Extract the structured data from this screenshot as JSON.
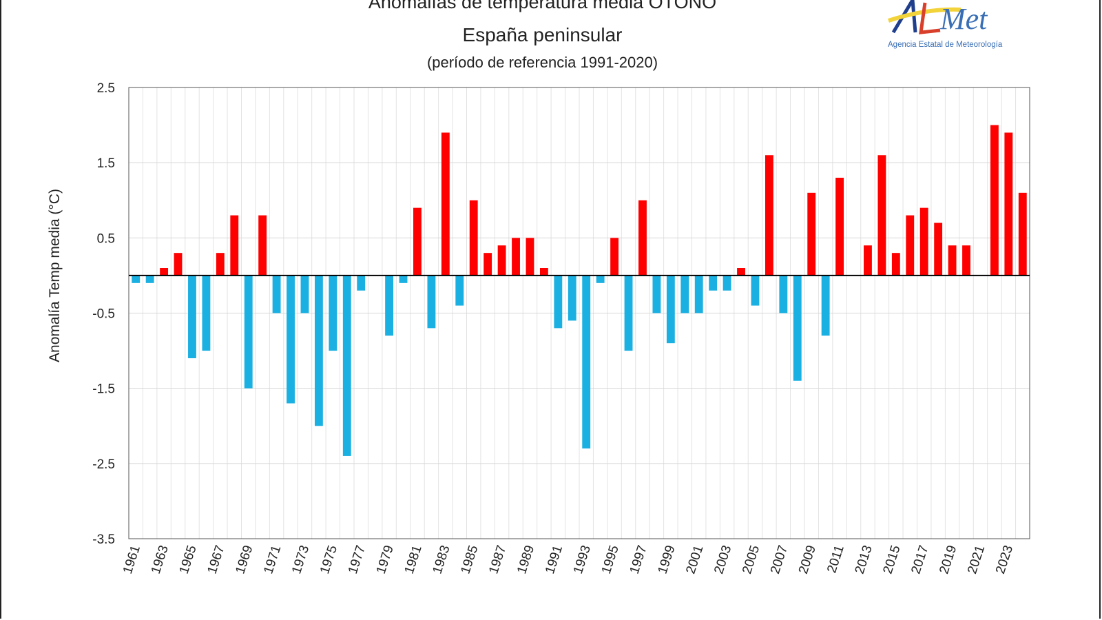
{
  "chart_data": {
    "type": "bar",
    "title": "Anomalías de temperatura media OTOÑO",
    "subtitle": "España peninsular",
    "note": "(período de referencia 1991-2020)",
    "xlabel": "",
    "ylabel": "Anomalía Temp media (°C)",
    "ylim": [
      -3.5,
      2.5
    ],
    "yticks": [
      "2.5",
      "1.5",
      "0.5",
      "-0.5",
      "-1.5",
      "-2.5",
      "-3.5"
    ],
    "grid": true,
    "colors": {
      "positive": "#ff0000",
      "negative": "#1ab0e2"
    },
    "categories": [
      "1961",
      "1962",
      "1963",
      "1964",
      "1965",
      "1966",
      "1967",
      "1968",
      "1969",
      "1970",
      "1971",
      "1972",
      "1973",
      "1974",
      "1975",
      "1976",
      "1977",
      "1978",
      "1979",
      "1980",
      "1981",
      "1982",
      "1983",
      "1984",
      "1985",
      "1986",
      "1987",
      "1988",
      "1989",
      "1990",
      "1991",
      "1992",
      "1993",
      "1994",
      "1995",
      "1996",
      "1997",
      "1998",
      "1999",
      "2000",
      "2001",
      "2002",
      "2003",
      "2004",
      "2005",
      "2006",
      "2007",
      "2008",
      "2009",
      "2010",
      "2011",
      "2012",
      "2013",
      "2014",
      "2015",
      "2016",
      "2017",
      "2018",
      "2019",
      "2020",
      "2021",
      "2022",
      "2023",
      "2024"
    ],
    "values": [
      -0.1,
      -0.1,
      0.1,
      0.3,
      -1.1,
      -1.0,
      0.3,
      0.8,
      -1.5,
      0.8,
      -0.5,
      -1.7,
      -0.5,
      -2.0,
      -1.0,
      -2.4,
      -0.2,
      0.0,
      -0.8,
      -0.1,
      0.9,
      -0.7,
      1.9,
      -0.4,
      1.0,
      0.3,
      0.4,
      0.5,
      0.5,
      0.1,
      -0.7,
      -0.6,
      -2.3,
      -0.1,
      0.5,
      -1.0,
      1.0,
      -0.5,
      -0.9,
      -0.5,
      -0.5,
      -0.2,
      -0.2,
      0.1,
      -0.4,
      1.6,
      -0.5,
      -1.4,
      1.1,
      -0.8,
      1.3,
      0.0,
      0.4,
      1.6,
      0.3,
      0.8,
      0.9,
      0.7,
      0.4,
      0.4,
      0.0,
      2.0,
      1.9,
      1.1
    ]
  },
  "logo": {
    "text": "AEmet",
    "caption": "Agencia Estatal de Meteorología"
  }
}
